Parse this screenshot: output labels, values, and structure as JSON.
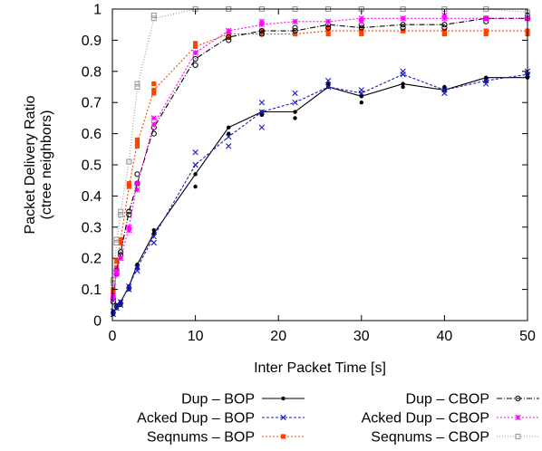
{
  "chart_data": {
    "type": "line",
    "title": "",
    "xlabel": "Inter Packet Time [s]",
    "ylabel_lines": [
      "Packet Delivery Ratio",
      "(ctree neighbors)"
    ],
    "xlim": [
      0,
      50
    ],
    "ylim": [
      0,
      1
    ],
    "xticks": [
      0,
      10,
      20,
      30,
      40,
      50
    ],
    "yticks": [
      0,
      0.1,
      0.2,
      0.3,
      0.4,
      0.5,
      0.6,
      0.7,
      0.8,
      0.9,
      1
    ],
    "grid": false,
    "legend_position": "bottom",
    "series": [
      {
        "name": "Dup – BOP",
        "color": "#000000",
        "dash": "",
        "marker": "dot",
        "points": [
          [
            0.1,
            0.03
          ],
          [
            0.5,
            0.04
          ],
          [
            1,
            0.06
          ],
          [
            2,
            0.11
          ],
          [
            3,
            0.18
          ],
          [
            5,
            0.28
          ],
          [
            10,
            0.47
          ],
          [
            14,
            0.62
          ],
          [
            18,
            0.67
          ],
          [
            22,
            0.67
          ],
          [
            26,
            0.75
          ],
          [
            30,
            0.72
          ],
          [
            35,
            0.76
          ],
          [
            40,
            0.74
          ],
          [
            45,
            0.78
          ],
          [
            50,
            0.78
          ]
        ],
        "scatter": [
          [
            0.1,
            0.02
          ],
          [
            0.5,
            0.05
          ],
          [
            1,
            0.05
          ],
          [
            2,
            0.1
          ],
          [
            3,
            0.17
          ],
          [
            5,
            0.29
          ],
          [
            10,
            0.43
          ],
          [
            14,
            0.6
          ],
          [
            18,
            0.66
          ],
          [
            22,
            0.65
          ],
          [
            26,
            0.76
          ],
          [
            30,
            0.7
          ],
          [
            35,
            0.75
          ],
          [
            40,
            0.75
          ],
          [
            45,
            0.77
          ],
          [
            50,
            0.79
          ]
        ]
      },
      {
        "name": "Acked Dup – BOP",
        "color": "#1a1acc",
        "dash": "3,2",
        "marker": "x",
        "points": [
          [
            0.1,
            0.02
          ],
          [
            0.5,
            0.04
          ],
          [
            1,
            0.06
          ],
          [
            2,
            0.11
          ],
          [
            3,
            0.17
          ],
          [
            5,
            0.27
          ],
          [
            10,
            0.5
          ],
          [
            14,
            0.59
          ],
          [
            18,
            0.67
          ],
          [
            22,
            0.7
          ],
          [
            26,
            0.75
          ],
          [
            30,
            0.73
          ],
          [
            35,
            0.79
          ],
          [
            40,
            0.74
          ],
          [
            45,
            0.77
          ],
          [
            50,
            0.79
          ]
        ],
        "scatter": [
          [
            0.1,
            0.03
          ],
          [
            0.5,
            0.05
          ],
          [
            1,
            0.05
          ],
          [
            2,
            0.1
          ],
          [
            3,
            0.16
          ],
          [
            5,
            0.25
          ],
          [
            10,
            0.54
          ],
          [
            14,
            0.56
          ],
          [
            18,
            0.62
          ],
          [
            18,
            0.7
          ],
          [
            22,
            0.73
          ],
          [
            26,
            0.77
          ],
          [
            30,
            0.74
          ],
          [
            35,
            0.8
          ],
          [
            40,
            0.73
          ],
          [
            45,
            0.76
          ],
          [
            50,
            0.8
          ]
        ]
      },
      {
        "name": "Seqnums – BOP",
        "color": "#ff4400",
        "dash": "2,2",
        "marker": "square",
        "points": [
          [
            0.1,
            0.09
          ],
          [
            0.5,
            0.17
          ],
          [
            1,
            0.26
          ],
          [
            2,
            0.43
          ],
          [
            3,
            0.57
          ],
          [
            5,
            0.74
          ],
          [
            10,
            0.88
          ],
          [
            14,
            0.92
          ],
          [
            18,
            0.92
          ],
          [
            22,
            0.92
          ],
          [
            26,
            0.93
          ],
          [
            30,
            0.93
          ],
          [
            35,
            0.93
          ],
          [
            40,
            0.93
          ],
          [
            45,
            0.93
          ],
          [
            50,
            0.93
          ]
        ],
        "scatter": [
          [
            0.1,
            0.1
          ],
          [
            0.5,
            0.19
          ],
          [
            1,
            0.25
          ],
          [
            2,
            0.44
          ],
          [
            3,
            0.58
          ],
          [
            3,
            0.56
          ],
          [
            5,
            0.76
          ],
          [
            5,
            0.73
          ],
          [
            10,
            0.89
          ],
          [
            14,
            0.91
          ],
          [
            18,
            0.93
          ],
          [
            22,
            0.92
          ],
          [
            26,
            0.94
          ],
          [
            26,
            0.92
          ],
          [
            30,
            0.92
          ],
          [
            35,
            0.93
          ],
          [
            40,
            0.92
          ],
          [
            45,
            0.92
          ],
          [
            50,
            0.92
          ]
        ]
      },
      {
        "name": "Dup – CBOP",
        "color": "#000000",
        "dash": "6,2,1,2",
        "marker": "circle",
        "points": [
          [
            0.1,
            0.07
          ],
          [
            0.5,
            0.16
          ],
          [
            1,
            0.22
          ],
          [
            2,
            0.35
          ],
          [
            3,
            0.44
          ],
          [
            5,
            0.62
          ],
          [
            10,
            0.84
          ],
          [
            14,
            0.91
          ],
          [
            18,
            0.93
          ],
          [
            22,
            0.93
          ],
          [
            26,
            0.95
          ],
          [
            30,
            0.94
          ],
          [
            35,
            0.95
          ],
          [
            40,
            0.95
          ],
          [
            45,
            0.97
          ],
          [
            50,
            0.97
          ]
        ],
        "scatter": [
          [
            0.1,
            0.06
          ],
          [
            0.5,
            0.15
          ],
          [
            1,
            0.21
          ],
          [
            2,
            0.34
          ],
          [
            3,
            0.47
          ],
          [
            5,
            0.6
          ],
          [
            10,
            0.82
          ],
          [
            14,
            0.9
          ],
          [
            18,
            0.92
          ],
          [
            22,
            0.94
          ],
          [
            26,
            0.94
          ],
          [
            30,
            0.95
          ],
          [
            35,
            0.94
          ],
          [
            40,
            0.94
          ],
          [
            45,
            0.96
          ],
          [
            50,
            0.98
          ]
        ]
      },
      {
        "name": "Acked Dup – CBOP",
        "color": "#ff00ff",
        "dash": "2,2",
        "marker": "star",
        "points": [
          [
            0.1,
            0.08
          ],
          [
            0.5,
            0.16
          ],
          [
            1,
            0.2
          ],
          [
            2,
            0.3
          ],
          [
            3,
            0.44
          ],
          [
            5,
            0.63
          ],
          [
            10,
            0.86
          ],
          [
            14,
            0.93
          ],
          [
            18,
            0.95
          ],
          [
            22,
            0.96
          ],
          [
            26,
            0.96
          ],
          [
            30,
            0.97
          ],
          [
            35,
            0.97
          ],
          [
            40,
            0.97
          ],
          [
            45,
            0.97
          ],
          [
            50,
            0.97
          ]
        ],
        "scatter": [
          [
            0.1,
            0.07
          ],
          [
            0.5,
            0.15
          ],
          [
            1,
            0.2
          ],
          [
            2,
            0.29
          ],
          [
            3,
            0.42
          ],
          [
            5,
            0.65
          ],
          [
            10,
            0.86
          ],
          [
            14,
            0.93
          ],
          [
            18,
            0.96
          ],
          [
            22,
            0.96
          ],
          [
            26,
            0.96
          ],
          [
            30,
            0.96
          ],
          [
            35,
            0.97
          ],
          [
            40,
            0.98
          ],
          [
            45,
            0.97
          ],
          [
            50,
            0.97
          ]
        ]
      },
      {
        "name": "Seqnums – CBOP",
        "color": "#999999",
        "dash": "1,2",
        "marker": "square-open",
        "points": [
          [
            0.1,
            0.12
          ],
          [
            0.5,
            0.25
          ],
          [
            1,
            0.35
          ],
          [
            2,
            0.51
          ],
          [
            3,
            0.75
          ],
          [
            5,
            0.97
          ],
          [
            10,
            1.0
          ],
          [
            14,
            1.0
          ],
          [
            18,
            1.0
          ],
          [
            22,
            1.0
          ],
          [
            26,
            1.0
          ],
          [
            30,
            1.0
          ],
          [
            35,
            1.0
          ],
          [
            40,
            1.0
          ],
          [
            45,
            1.0
          ],
          [
            50,
            0.99
          ]
        ],
        "scatter": [
          [
            0.1,
            0.13
          ],
          [
            0.5,
            0.26
          ],
          [
            1,
            0.34
          ],
          [
            2,
            0.51
          ],
          [
            3,
            0.76
          ],
          [
            5,
            0.98
          ],
          [
            10,
            1.0
          ],
          [
            14,
            1.0
          ],
          [
            18,
            1.0
          ],
          [
            22,
            1.0
          ],
          [
            26,
            1.0
          ],
          [
            30,
            1.0
          ],
          [
            35,
            1.0
          ],
          [
            40,
            1.0
          ],
          [
            45,
            1.0
          ],
          [
            50,
            0.99
          ]
        ]
      }
    ]
  }
}
